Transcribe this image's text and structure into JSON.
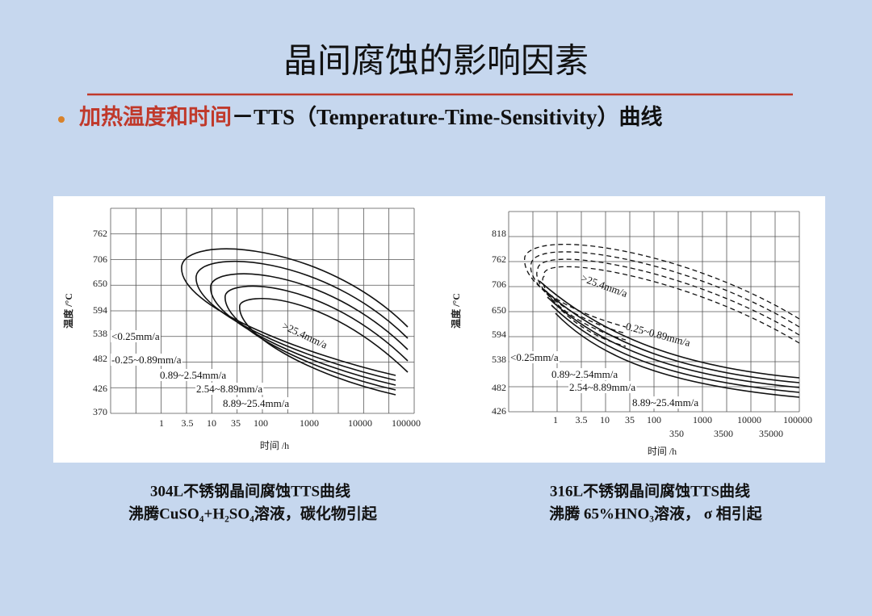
{
  "header": {
    "title": "晶间腐蚀的影响因素"
  },
  "bullet": {
    "lead": "加热温度和时间",
    "text": "－TTS（Temperature-Time-Sensitivity）曲线"
  },
  "figures": [
    {
      "y_axis_label": "温度 /°C",
      "x_axis_label": "时间 /h",
      "y_ticks": [
        "762",
        "706",
        "650",
        "594",
        "538",
        "482",
        "426",
        "370"
      ],
      "x_ticks": [
        "1",
        "3.5",
        "10",
        "35",
        "100",
        "1000",
        "10000",
        "100000"
      ],
      "x_ticks_second_row": [],
      "curve_labels": [
        "<0.25mm/a",
        "-0.25~0.89mm/a",
        "0.89~2.54mm/a",
        "2.54~8.89mm/a",
        "8.89~25.4mm/a",
        ">25.4mm/a"
      ],
      "caption": [
        "304L不锈钢晶间腐蚀TTS曲线",
        "沸腾CuSO₄+H₂SO₄溶液，碳化物引起"
      ]
    },
    {
      "y_axis_label": "温度 /°C",
      "x_axis_label": "时间 /h",
      "y_ticks": [
        "818",
        "762",
        "706",
        "650",
        "594",
        "538",
        "482",
        "426"
      ],
      "x_ticks": [
        "1",
        "3.5",
        "10",
        "35",
        "100",
        "1000",
        "10000",
        "100000"
      ],
      "x_ticks_second_row": [
        "350",
        "3500",
        "35000"
      ],
      "curve_labels": [
        ">25.4mm/a",
        "0.25~0.89mm/a",
        "<0.25mm/a",
        "0.89~2.54mm/a",
        "2.54~8.89mm/a",
        "8.89~25.4mm/a"
      ],
      "caption": [
        "316L不锈钢晶间腐蚀TTS曲线",
        "沸腾 65%HNO₃溶液， σ 相引起"
      ]
    }
  ]
}
